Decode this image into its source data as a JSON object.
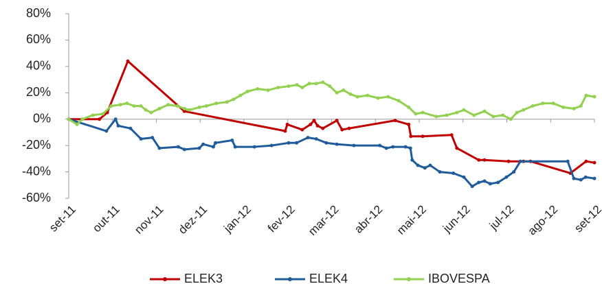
{
  "chart_data": {
    "type": "line",
    "xlim": [
      0,
      12
    ],
    "xticks": [
      {
        "value": 0,
        "label": "set-11"
      },
      {
        "value": 1,
        "label": "out-11"
      },
      {
        "value": 2,
        "label": "nov-11"
      },
      {
        "value": 3,
        "label": "dez-11"
      },
      {
        "value": 4,
        "label": "jan-12"
      },
      {
        "value": 5,
        "label": "fev-12"
      },
      {
        "value": 6,
        "label": "mar-12"
      },
      {
        "value": 7,
        "label": "abr-12"
      },
      {
        "value": 8,
        "label": "mai-12"
      },
      {
        "value": 9,
        "label": "jun-12"
      },
      {
        "value": 10,
        "label": "jul-12"
      },
      {
        "value": 11,
        "label": "ago-12"
      },
      {
        "value": 12,
        "label": "set-12"
      }
    ],
    "ylim": [
      -60,
      80
    ],
    "yticks": [
      {
        "value": 80,
        "label": "80%"
      },
      {
        "value": 60,
        "label": "60%"
      },
      {
        "value": 40,
        "label": "40%"
      },
      {
        "value": 20,
        "label": "20%"
      },
      {
        "value": 0,
        "label": "0%"
      },
      {
        "value": -20,
        "label": "-20%"
      },
      {
        "value": -40,
        "label": "-40%"
      },
      {
        "value": -60,
        "label": "-60%"
      }
    ],
    "grid": false,
    "legend": "bottom",
    "series": [
      {
        "name": "ELEK3",
        "color": "#c00000",
        "x": [
          0,
          0.7,
          0.88,
          1.35,
          2.64,
          4.94,
          4.99,
          5.33,
          5.52,
          5.6,
          5.68,
          5.8,
          6.12,
          6.24,
          6.4,
          7.45,
          7.76,
          7.81,
          8.08,
          8.74,
          8.86,
          9.36,
          9.49,
          10.04,
          10.38,
          10.54,
          11.45,
          11.81,
          12
        ],
        "values": [
          0,
          0,
          5,
          44,
          6,
          -9,
          -4,
          -8,
          -4,
          -1,
          -5,
          -7,
          -1,
          -8,
          -7,
          -1,
          -4,
          -13,
          -13,
          -12,
          -22,
          -31,
          -31,
          -32,
          -32,
          -32,
          -41,
          -32,
          -33
        ]
      },
      {
        "name": "ELEK4",
        "color": "#1f5c99",
        "x": [
          0,
          0.86,
          1.07,
          1.13,
          1.41,
          1.65,
          1.91,
          2.07,
          2.5,
          2.64,
          2.98,
          3.07,
          3.3,
          3.35,
          3.73,
          3.8,
          4.24,
          4.63,
          5.02,
          5.2,
          5.46,
          5.65,
          5.88,
          6.12,
          6.51,
          7.1,
          7.25,
          7.4,
          7.69,
          7.8,
          7.84,
          7.97,
          8.13,
          8.25,
          8.47,
          8.78,
          9.02,
          9.21,
          9.36,
          9.49,
          9.62,
          9.8,
          9.99,
          10.16,
          10.31,
          11.39,
          11.53,
          11.69,
          11.8,
          12
        ],
        "values": [
          0,
          -9,
          0,
          -5,
          -7,
          -15,
          -14,
          -22,
          -21,
          -23,
          -22,
          -19,
          -21,
          -18,
          -16,
          -21,
          -21,
          -20,
          -18,
          -18,
          -14,
          -15,
          -18,
          -19,
          -20,
          -20,
          -22,
          -21,
          -21,
          -22,
          -31,
          -35,
          -37,
          -35,
          -40,
          -41,
          -44,
          -51,
          -48,
          -47,
          -49,
          -48,
          -44,
          -40,
          -32,
          -32,
          -45,
          -46,
          -44,
          -45
        ]
      },
      {
        "name": "IBOVESPA",
        "color": "#92d050",
        "x": [
          0,
          0.19,
          0.31,
          0.55,
          0.78,
          0.97,
          1.18,
          1.33,
          1.49,
          1.65,
          1.76,
          1.88,
          2.07,
          2.27,
          2.48,
          2.64,
          2.75,
          2.98,
          3.14,
          3.37,
          3.61,
          3.76,
          3.92,
          4.08,
          4.31,
          4.55,
          4.78,
          5.02,
          5.21,
          5.33,
          5.49,
          5.65,
          5.8,
          5.96,
          6.12,
          6.27,
          6.43,
          6.59,
          6.82,
          7.06,
          7.29,
          7.53,
          7.76,
          7.92,
          8.08,
          8.39,
          8.63,
          8.86,
          9.02,
          9.25,
          9.49,
          9.69,
          9.91,
          10.09,
          10.23,
          10.38,
          10.59,
          10.82,
          11.06,
          11.29,
          11.53,
          11.69,
          11.81,
          12
        ],
        "values": [
          0,
          -4,
          0,
          3,
          4,
          10,
          11,
          12,
          10,
          10,
          7,
          5,
          8,
          11,
          10,
          8,
          7,
          9,
          10,
          12,
          13,
          15,
          18,
          21,
          23,
          22,
          24,
          25,
          26,
          24,
          27,
          27,
          28,
          25,
          20,
          22,
          19,
          17,
          18,
          16,
          17,
          14,
          9,
          4,
          5,
          2,
          3,
          5,
          7,
          3,
          6,
          2,
          3,
          0,
          5,
          7,
          10,
          12,
          12,
          9,
          8,
          10,
          18,
          17
        ]
      }
    ]
  }
}
